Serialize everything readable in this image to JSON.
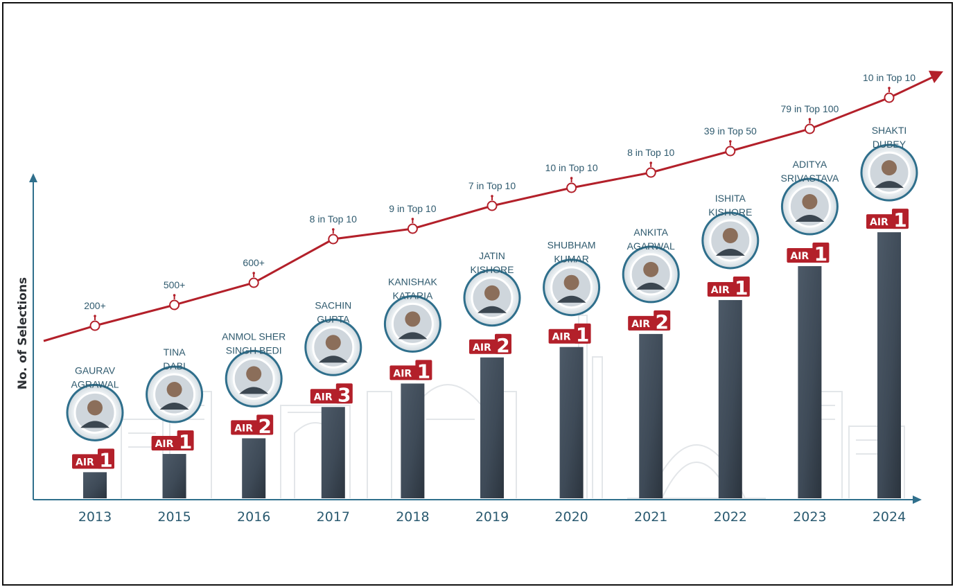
{
  "chart_data": {
    "type": "bar",
    "ylabel": "No. of Selections",
    "categories": [
      "2013",
      "2015",
      "2016",
      "2017",
      "2018",
      "2019",
      "2020",
      "2021",
      "2022",
      "2023",
      "2024"
    ],
    "values": [
      1.0,
      1.7,
      2.3,
      3.5,
      4.4,
      5.4,
      5.8,
      6.3,
      7.6,
      8.9,
      10.2
    ],
    "ylim": [
      0,
      11
    ],
    "grid": false,
    "bar_color": "#3f4c5a",
    "line_color": "#b3202a",
    "badge_color": "#b3202a",
    "trend_labels": [
      "200+",
      "500+",
      "600+",
      "8 in Top 10",
      "9 in Top 10",
      "7 in Top 10",
      "10 in Top 10",
      "8 in Top 10",
      "39 in Top 50",
      "79 in Top 100",
      "10 in Top 10"
    ],
    "toppers": [
      {
        "name": [
          "GAURAV",
          "AGRAWAL"
        ],
        "rank_prefix": "AIR",
        "rank": "1"
      },
      {
        "name": [
          "TINA",
          "DABI"
        ],
        "rank_prefix": "AIR",
        "rank": "1"
      },
      {
        "name": [
          "ANMOL SHER",
          "SINGH BEDI"
        ],
        "rank_prefix": "AIR",
        "rank": "2"
      },
      {
        "name": [
          "SACHIN",
          "GUPTA"
        ],
        "rank_prefix": "AIR",
        "rank": "3"
      },
      {
        "name": [
          "KANISHAK",
          "KATARIA"
        ],
        "rank_prefix": "AIR",
        "rank": "1"
      },
      {
        "name": [
          "JATIN",
          "KISHORE"
        ],
        "rank_prefix": "AIR",
        "rank": "2"
      },
      {
        "name": [
          "SHUBHAM",
          "KUMAR"
        ],
        "rank_prefix": "AIR",
        "rank": "1"
      },
      {
        "name": [
          "ANKITA",
          "AGARWAL"
        ],
        "rank_prefix": "AIR",
        "rank": "2"
      },
      {
        "name": [
          "ISHITA",
          "KISHORE"
        ],
        "rank_prefix": "AIR",
        "rank": "1"
      },
      {
        "name": [
          "ADITYA",
          "SRIVASTAVA"
        ],
        "rank_prefix": "AIR",
        "rank": "1"
      },
      {
        "name": [
          "SHAKTI",
          "DUBEY"
        ],
        "rank_prefix": "AIR",
        "rank": "1"
      }
    ]
  }
}
